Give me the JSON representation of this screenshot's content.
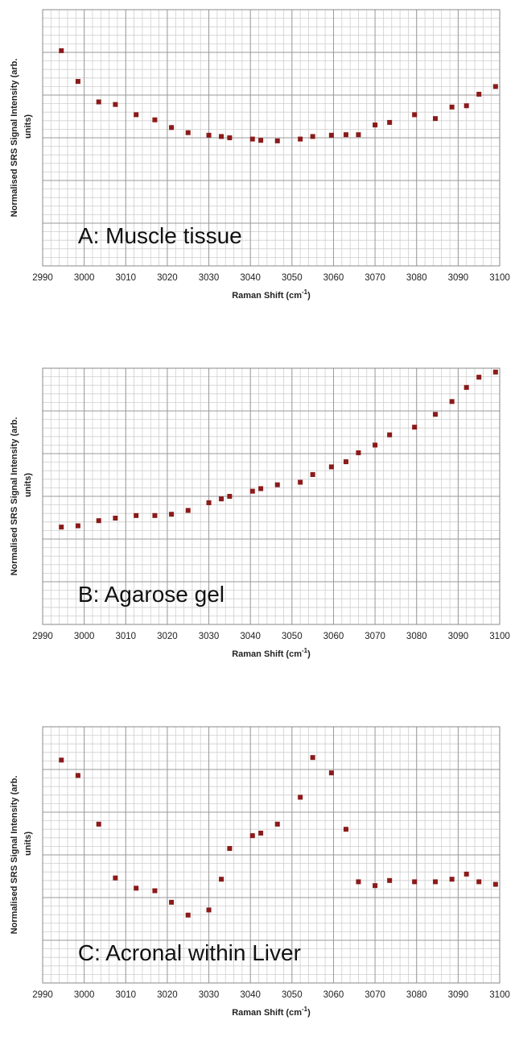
{
  "chart_data": [
    {
      "type": "scatter",
      "annotation": "A: Muscle tissue",
      "xlabel": "Raman Shift (cm",
      "xlabel_sup": "-1",
      "xlabel_close": ")",
      "ylabel_line1": "Normalised SRS Signal Intensity (arb.",
      "ylabel_line2": "units)",
      "xlim": [
        2990,
        3100
      ],
      "ylim": [
        0,
        1
      ],
      "xticks": [
        "2990",
        "3000",
        "3010",
        "3020",
        "3030",
        "3040",
        "3050",
        "3060",
        "3070",
        "3080",
        "3090",
        "3100"
      ],
      "grid": true,
      "marker_color": "#8b1a1a",
      "x": [
        2994.5,
        2998.5,
        3003.5,
        3007.5,
        3012.5,
        3017,
        3021,
        3025,
        3030,
        3033,
        3035,
        3040.5,
        3042.5,
        3046.5,
        3052,
        3055,
        3059.5,
        3063,
        3066,
        3070,
        3073.5,
        3079.5,
        3084.5,
        3088.5,
        3092,
        3095,
        3099
      ],
      "y": [
        0.84,
        0.72,
        0.64,
        0.63,
        0.59,
        0.57,
        0.54,
        0.52,
        0.51,
        0.505,
        0.5,
        0.495,
        0.49,
        0.488,
        0.495,
        0.505,
        0.51,
        0.512,
        0.512,
        0.55,
        0.56,
        0.59,
        0.575,
        0.62,
        0.625,
        0.67,
        0.7
      ]
    },
    {
      "type": "scatter",
      "annotation": "B: Agarose gel",
      "xlabel": "Raman Shift (cm",
      "xlabel_sup": "-1",
      "xlabel_close": ")",
      "ylabel_line1": "Normalised SRS Signal Intensity (arb.",
      "ylabel_line2": "units)",
      "xlim": [
        2990,
        3100
      ],
      "ylim": [
        0,
        1
      ],
      "xticks": [
        "2990",
        "3000",
        "3010",
        "3020",
        "3030",
        "3040",
        "3050",
        "3060",
        "3070",
        "3080",
        "3090",
        "3100"
      ],
      "grid": true,
      "marker_color": "#8b1a1a",
      "x": [
        2994.5,
        2998.5,
        3003.5,
        3007.5,
        3012.5,
        3017,
        3021,
        3025,
        3030,
        3033,
        3035,
        3040.5,
        3042.5,
        3046.5,
        3052,
        3055,
        3059.5,
        3063,
        3066,
        3070,
        3073.5,
        3079.5,
        3084.5,
        3088.5,
        3092,
        3095,
        3099
      ],
      "y": [
        0.38,
        0.385,
        0.405,
        0.415,
        0.425,
        0.425,
        0.43,
        0.445,
        0.475,
        0.49,
        0.5,
        0.52,
        0.53,
        0.545,
        0.555,
        0.585,
        0.615,
        0.635,
        0.67,
        0.7,
        0.74,
        0.77,
        0.82,
        0.87,
        0.925,
        0.965,
        0.985
      ]
    },
    {
      "type": "scatter",
      "annotation": "C: Acronal within Liver",
      "xlabel": "Raman Shift (cm",
      "xlabel_sup": "-1",
      "xlabel_close": ")",
      "ylabel_line1": "Normalised SRS Signal Intensity (arb.",
      "ylabel_line2": "units)",
      "xlim": [
        2990,
        3100
      ],
      "ylim": [
        0,
        1
      ],
      "xticks": [
        "2990",
        "3000",
        "3010",
        "3020",
        "3030",
        "3040",
        "3050",
        "3060",
        "3070",
        "3080",
        "3090",
        "3100"
      ],
      "grid": true,
      "marker_color": "#8b1a1a",
      "x": [
        2994.5,
        2998.5,
        3003.5,
        3007.5,
        3012.5,
        3017,
        3021,
        3025,
        3030,
        3033,
        3035,
        3040.5,
        3042.5,
        3046.5,
        3052,
        3055,
        3059.5,
        3063,
        3066,
        3070,
        3073.5,
        3079.5,
        3084.5,
        3088.5,
        3092,
        3095,
        3099
      ],
      "y": [
        0.87,
        0.81,
        0.62,
        0.41,
        0.37,
        0.36,
        0.315,
        0.265,
        0.285,
        0.405,
        0.525,
        0.575,
        0.585,
        0.62,
        0.725,
        0.88,
        0.82,
        0.6,
        0.395,
        0.38,
        0.4,
        0.395,
        0.395,
        0.405,
        0.425,
        0.395,
        0.385
      ]
    }
  ]
}
